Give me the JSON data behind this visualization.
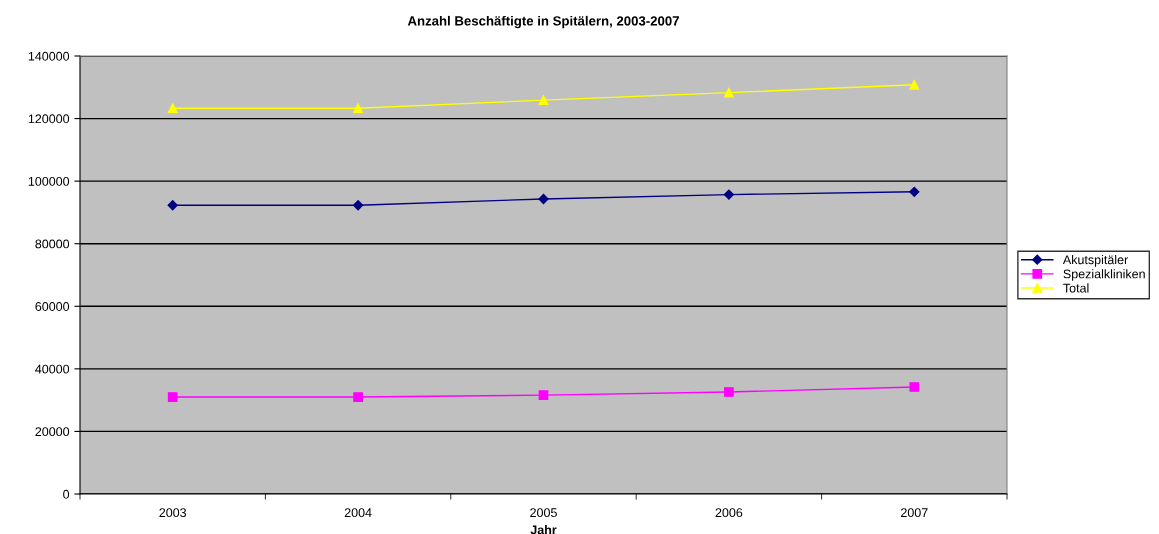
{
  "chart_data": {
    "type": "line",
    "title": "Anzahl Beschäftigte in Spitälern, 2003-2007",
    "xlabel": "Jahr",
    "categories": [
      "2003",
      "2004",
      "2005",
      "2006",
      "2007"
    ],
    "series": [
      {
        "name": "Akutspitäler",
        "color": "#000080",
        "marker": "diamond",
        "values": [
          92300,
          92300,
          94300,
          95700,
          96600
        ]
      },
      {
        "name": "Spezialkliniken",
        "color": "#ff00ff",
        "marker": "square",
        "values": [
          31000,
          31000,
          31600,
          32600,
          34200
        ]
      },
      {
        "name": "Total",
        "color": "#ffff00",
        "marker": "triangle",
        "values": [
          123300,
          123300,
          125900,
          128300,
          130800
        ]
      }
    ],
    "ylim": [
      0,
      140000
    ],
    "yticks": [
      0,
      20000,
      40000,
      60000,
      80000,
      100000,
      120000,
      140000
    ],
    "grid": "y",
    "legend": "right",
    "line_style": "solid"
  }
}
